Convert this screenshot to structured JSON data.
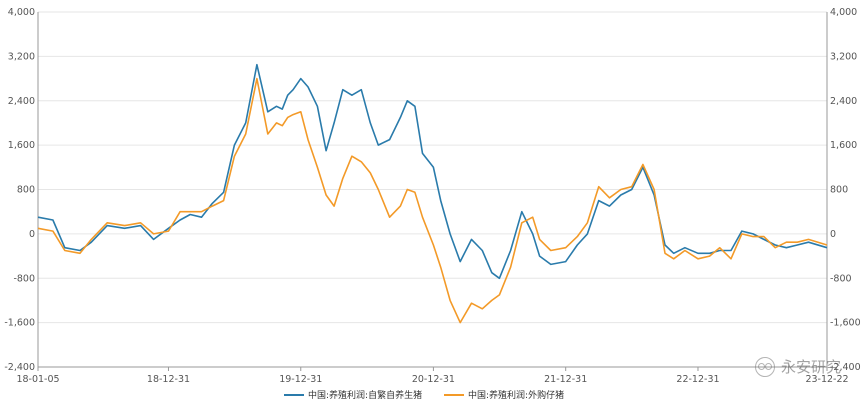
{
  "chart_data": {
    "type": "line",
    "y_ticks": [
      "4,000",
      "3,200",
      "2,400",
      "1,600",
      "800",
      "0",
      "-800",
      "-1,600",
      "-2,400"
    ],
    "y_values": [
      4000,
      3200,
      2400,
      1600,
      800,
      0,
      -800,
      -1600,
      -2400
    ],
    "ylim": [
      -2400,
      4000
    ],
    "xlim": [
      "2018-01-05",
      "2023-12-22"
    ],
    "x_tick_labels": [
      "18-01-05",
      "18-12-31",
      "19-12-31",
      "20-12-31",
      "21-12-31",
      "22-12-31",
      "23-12-22"
    ],
    "x_tick_dates": [
      "2018-01-05",
      "2018-12-31",
      "2019-12-31",
      "2020-12-31",
      "2021-12-31",
      "2022-12-31",
      "2023-12-22"
    ],
    "grid": true,
    "legend_position": "bottom-center",
    "series": [
      {
        "name": "中国:养殖利润:自繁自养生猪",
        "color": "#2a7bab",
        "x": [
          "2018-01-05",
          "2018-02-15",
          "2018-03-20",
          "2018-05-01",
          "2018-06-01",
          "2018-07-15",
          "2018-09-01",
          "2018-10-15",
          "2018-11-20",
          "2018-12-31",
          "2019-02-01",
          "2019-03-01",
          "2019-04-01",
          "2019-05-01",
          "2019-06-01",
          "2019-07-01",
          "2019-08-01",
          "2019-09-01",
          "2019-10-01",
          "2019-10-25",
          "2019-11-10",
          "2019-11-25",
          "2019-12-10",
          "2019-12-31",
          "2020-01-20",
          "2020-02-15",
          "2020-03-10",
          "2020-04-01",
          "2020-04-25",
          "2020-05-20",
          "2020-06-15",
          "2020-07-10",
          "2020-08-01",
          "2020-09-01",
          "2020-10-01",
          "2020-10-20",
          "2020-11-10",
          "2020-12-01",
          "2020-12-31",
          "2021-01-20",
          "2021-02-15",
          "2021-03-15",
          "2021-04-15",
          "2021-05-15",
          "2021-06-10",
          "2021-07-01",
          "2021-08-01",
          "2021-09-01",
          "2021-10-01",
          "2021-10-20",
          "2021-11-20",
          "2021-12-31",
          "2022-02-01",
          "2022-03-01",
          "2022-04-01",
          "2022-05-01",
          "2022-06-01",
          "2022-07-01",
          "2022-08-01",
          "2022-09-01",
          "2022-10-01",
          "2022-10-25",
          "2022-11-25",
          "2022-12-31",
          "2023-02-01",
          "2023-03-01",
          "2023-04-01",
          "2023-05-01",
          "2023-06-01",
          "2023-07-01",
          "2023-08-01",
          "2023-09-01",
          "2023-10-01",
          "2023-11-01",
          "2023-12-22"
        ],
        "values": [
          300,
          250,
          -250,
          -300,
          -150,
          150,
          100,
          150,
          -100,
          100,
          250,
          350,
          300,
          550,
          750,
          1600,
          2000,
          3050,
          2200,
          2300,
          2250,
          2500,
          2600,
          2800,
          2650,
          2300,
          1500,
          2000,
          2600,
          2500,
          2600,
          2000,
          1600,
          1700,
          2100,
          2400,
          2300,
          1450,
          1200,
          600,
          0,
          -500,
          -100,
          -300,
          -700,
          -800,
          -300,
          400,
          0,
          -400,
          -550,
          -500,
          -200,
          0,
          600,
          500,
          700,
          800,
          1200,
          700,
          -200,
          -350,
          -250,
          -350,
          -350,
          -300,
          -300,
          50,
          0,
          -100,
          -200,
          -250,
          -200,
          -150,
          -250
        ]
      },
      {
        "name": "中国:养殖利润:外购仔猪",
        "color": "#f39a28",
        "x": [
          "2018-01-05",
          "2018-02-15",
          "2018-03-20",
          "2018-05-01",
          "2018-06-01",
          "2018-07-15",
          "2018-09-01",
          "2018-10-15",
          "2018-11-20",
          "2018-12-31",
          "2019-02-01",
          "2019-03-01",
          "2019-04-01",
          "2019-05-01",
          "2019-06-01",
          "2019-07-01",
          "2019-08-01",
          "2019-09-01",
          "2019-10-01",
          "2019-10-25",
          "2019-11-10",
          "2019-11-25",
          "2019-12-10",
          "2019-12-31",
          "2020-01-20",
          "2020-02-15",
          "2020-03-10",
          "2020-04-01",
          "2020-04-25",
          "2020-05-20",
          "2020-06-15",
          "2020-07-10",
          "2020-08-01",
          "2020-09-01",
          "2020-10-01",
          "2020-10-20",
          "2020-11-10",
          "2020-12-01",
          "2020-12-31",
          "2021-01-20",
          "2021-02-15",
          "2021-03-15",
          "2021-04-15",
          "2021-05-15",
          "2021-06-10",
          "2021-07-01",
          "2021-08-01",
          "2021-09-01",
          "2021-10-01",
          "2021-10-20",
          "2021-11-20",
          "2021-12-31",
          "2022-02-01",
          "2022-03-01",
          "2022-04-01",
          "2022-05-01",
          "2022-06-01",
          "2022-07-01",
          "2022-08-01",
          "2022-09-01",
          "2022-10-01",
          "2022-10-25",
          "2022-11-25",
          "2022-12-31",
          "2023-02-01",
          "2023-03-01",
          "2023-04-01",
          "2023-05-01",
          "2023-06-01",
          "2023-07-01",
          "2023-08-01",
          "2023-09-01",
          "2023-10-01",
          "2023-11-01",
          "2023-12-22"
        ],
        "values": [
          100,
          50,
          -300,
          -350,
          -100,
          200,
          150,
          200,
          0,
          50,
          400,
          400,
          400,
          500,
          600,
          1400,
          1800,
          2800,
          1800,
          2000,
          1950,
          2100,
          2150,
          2200,
          1700,
          1200,
          700,
          500,
          1000,
          1400,
          1300,
          1100,
          800,
          300,
          500,
          800,
          750,
          300,
          -200,
          -600,
          -1200,
          -1600,
          -1250,
          -1350,
          -1200,
          -1100,
          -600,
          200,
          300,
          -100,
          -300,
          -250,
          -50,
          200,
          850,
          650,
          800,
          850,
          1250,
          800,
          -350,
          -450,
          -300,
          -450,
          -400,
          -250,
          -450,
          0,
          -50,
          -50,
          -250,
          -150,
          -150,
          -100,
          -200
        ]
      }
    ]
  }
}
